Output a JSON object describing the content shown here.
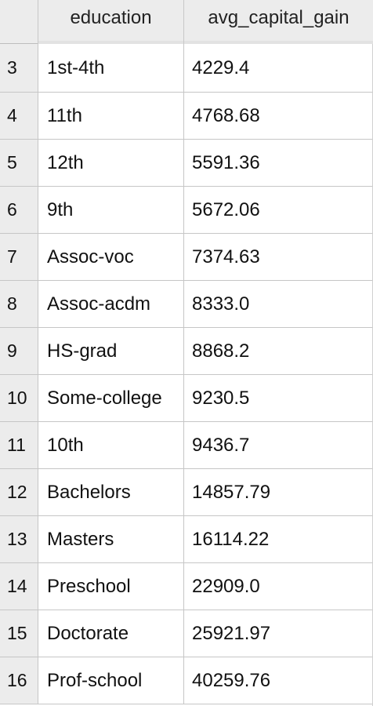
{
  "table": {
    "columns": [
      "education",
      "avg_capital_gain"
    ],
    "rows": [
      {
        "index": "3",
        "education": "1st-4th",
        "avg_capital_gain": "4229.4"
      },
      {
        "index": "4",
        "education": "11th",
        "avg_capital_gain": "4768.68"
      },
      {
        "index": "5",
        "education": "12th",
        "avg_capital_gain": "5591.36"
      },
      {
        "index": "6",
        "education": "9th",
        "avg_capital_gain": "5672.06"
      },
      {
        "index": "7",
        "education": "Assoc-voc",
        "avg_capital_gain": "7374.63"
      },
      {
        "index": "8",
        "education": "Assoc-acdm",
        "avg_capital_gain": "8333.0"
      },
      {
        "index": "9",
        "education": "HS-grad",
        "avg_capital_gain": "8868.2"
      },
      {
        "index": "10",
        "education": "Some-college",
        "avg_capital_gain": "9230.5"
      },
      {
        "index": "11",
        "education": "10th",
        "avg_capital_gain": "9436.7"
      },
      {
        "index": "12",
        "education": "Bachelors",
        "avg_capital_gain": "14857.79"
      },
      {
        "index": "13",
        "education": "Masters",
        "avg_capital_gain": "16114.22"
      },
      {
        "index": "14",
        "education": "Preschool",
        "avg_capital_gain": "22909.0"
      },
      {
        "index": "15",
        "education": "Doctorate",
        "avg_capital_gain": "25921.97"
      },
      {
        "index": "16",
        "education": "Prof-school",
        "avg_capital_gain": "40259.76"
      }
    ]
  }
}
